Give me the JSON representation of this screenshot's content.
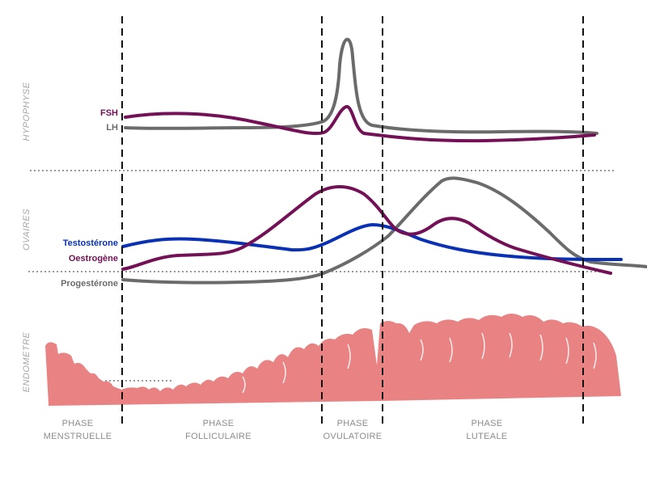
{
  "sections": {
    "hypophyse": "HYPOPHYSE",
    "ovaires": "OVAIRES",
    "endometre": "ENDOMETRE"
  },
  "hormones": {
    "fsh": {
      "label": "FSH",
      "color": "#731056"
    },
    "lh": {
      "label": "LH",
      "color": "#6b6b6b"
    },
    "testosterone": {
      "label": "Testostérone",
      "color": "#0a31b3"
    },
    "oestrogene": {
      "label": "Oestrogène",
      "color": "#731056"
    },
    "progesterone": {
      "label": "Progestérone",
      "color": "#6b6b6b"
    }
  },
  "phases": [
    {
      "line1": "PHASE",
      "line2": "MENSTRUELLE"
    },
    {
      "line1": "PHASE",
      "line2": "FOLLICULAIRE"
    },
    {
      "line1": "PHASE",
      "line2": "OVULATOIRE"
    },
    {
      "line1": "PHASE",
      "line2": "LUTEALE"
    }
  ],
  "colors": {
    "endometrium": "#e98283",
    "phase_line": "#111111",
    "separator": "#999999"
  }
}
